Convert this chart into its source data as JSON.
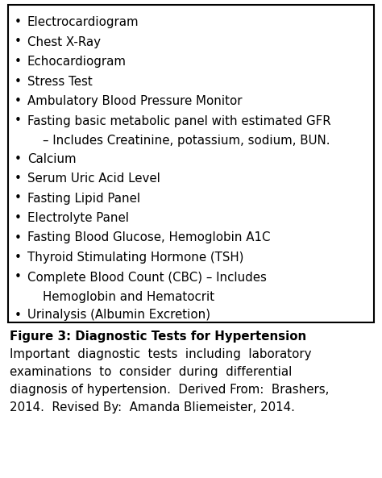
{
  "bullet_items": [
    [
      "Electrocardiogram"
    ],
    [
      "Chest X-Ray"
    ],
    [
      "Echocardiogram"
    ],
    [
      "Stress Test"
    ],
    [
      "Ambulatory Blood Pressure Monitor"
    ],
    [
      "Fasting basic metabolic panel with estimated GFR",
      "    – Includes Creatinine, potassium, sodium, BUN."
    ],
    [
      "Calcium"
    ],
    [
      "Serum Uric Acid Level"
    ],
    [
      "Fasting Lipid Panel"
    ],
    [
      "Electrolyte Panel"
    ],
    [
      "Fasting Blood Glucose, Hemoglobin A1C"
    ],
    [
      "Thyroid Stimulating Hormone (TSH)"
    ],
    [
      "Complete Blood Count (CBC) – Includes",
      "    Hemoglobin and Hematocrit"
    ],
    [
      "Urinalysis (Albumin Excretion)"
    ]
  ],
  "figure_label_bold": "Figure 3: Diagnostic Tests for Hypertension",
  "caption_lines": [
    "Important  diagnostic  tests  including  laboratory",
    "examinations  to  consider  during  differential",
    "diagnosis of hypertension.  Derived From:  Brashers,",
    "2014.  Revised By:  Amanda Bliemeister, 2014."
  ],
  "bg_color": "#ffffff",
  "text_color": "#000000",
  "border_color": "#000000",
  "bullet_fontsize": 10.8,
  "caption_fontsize": 10.8,
  "label_fontsize": 10.8
}
